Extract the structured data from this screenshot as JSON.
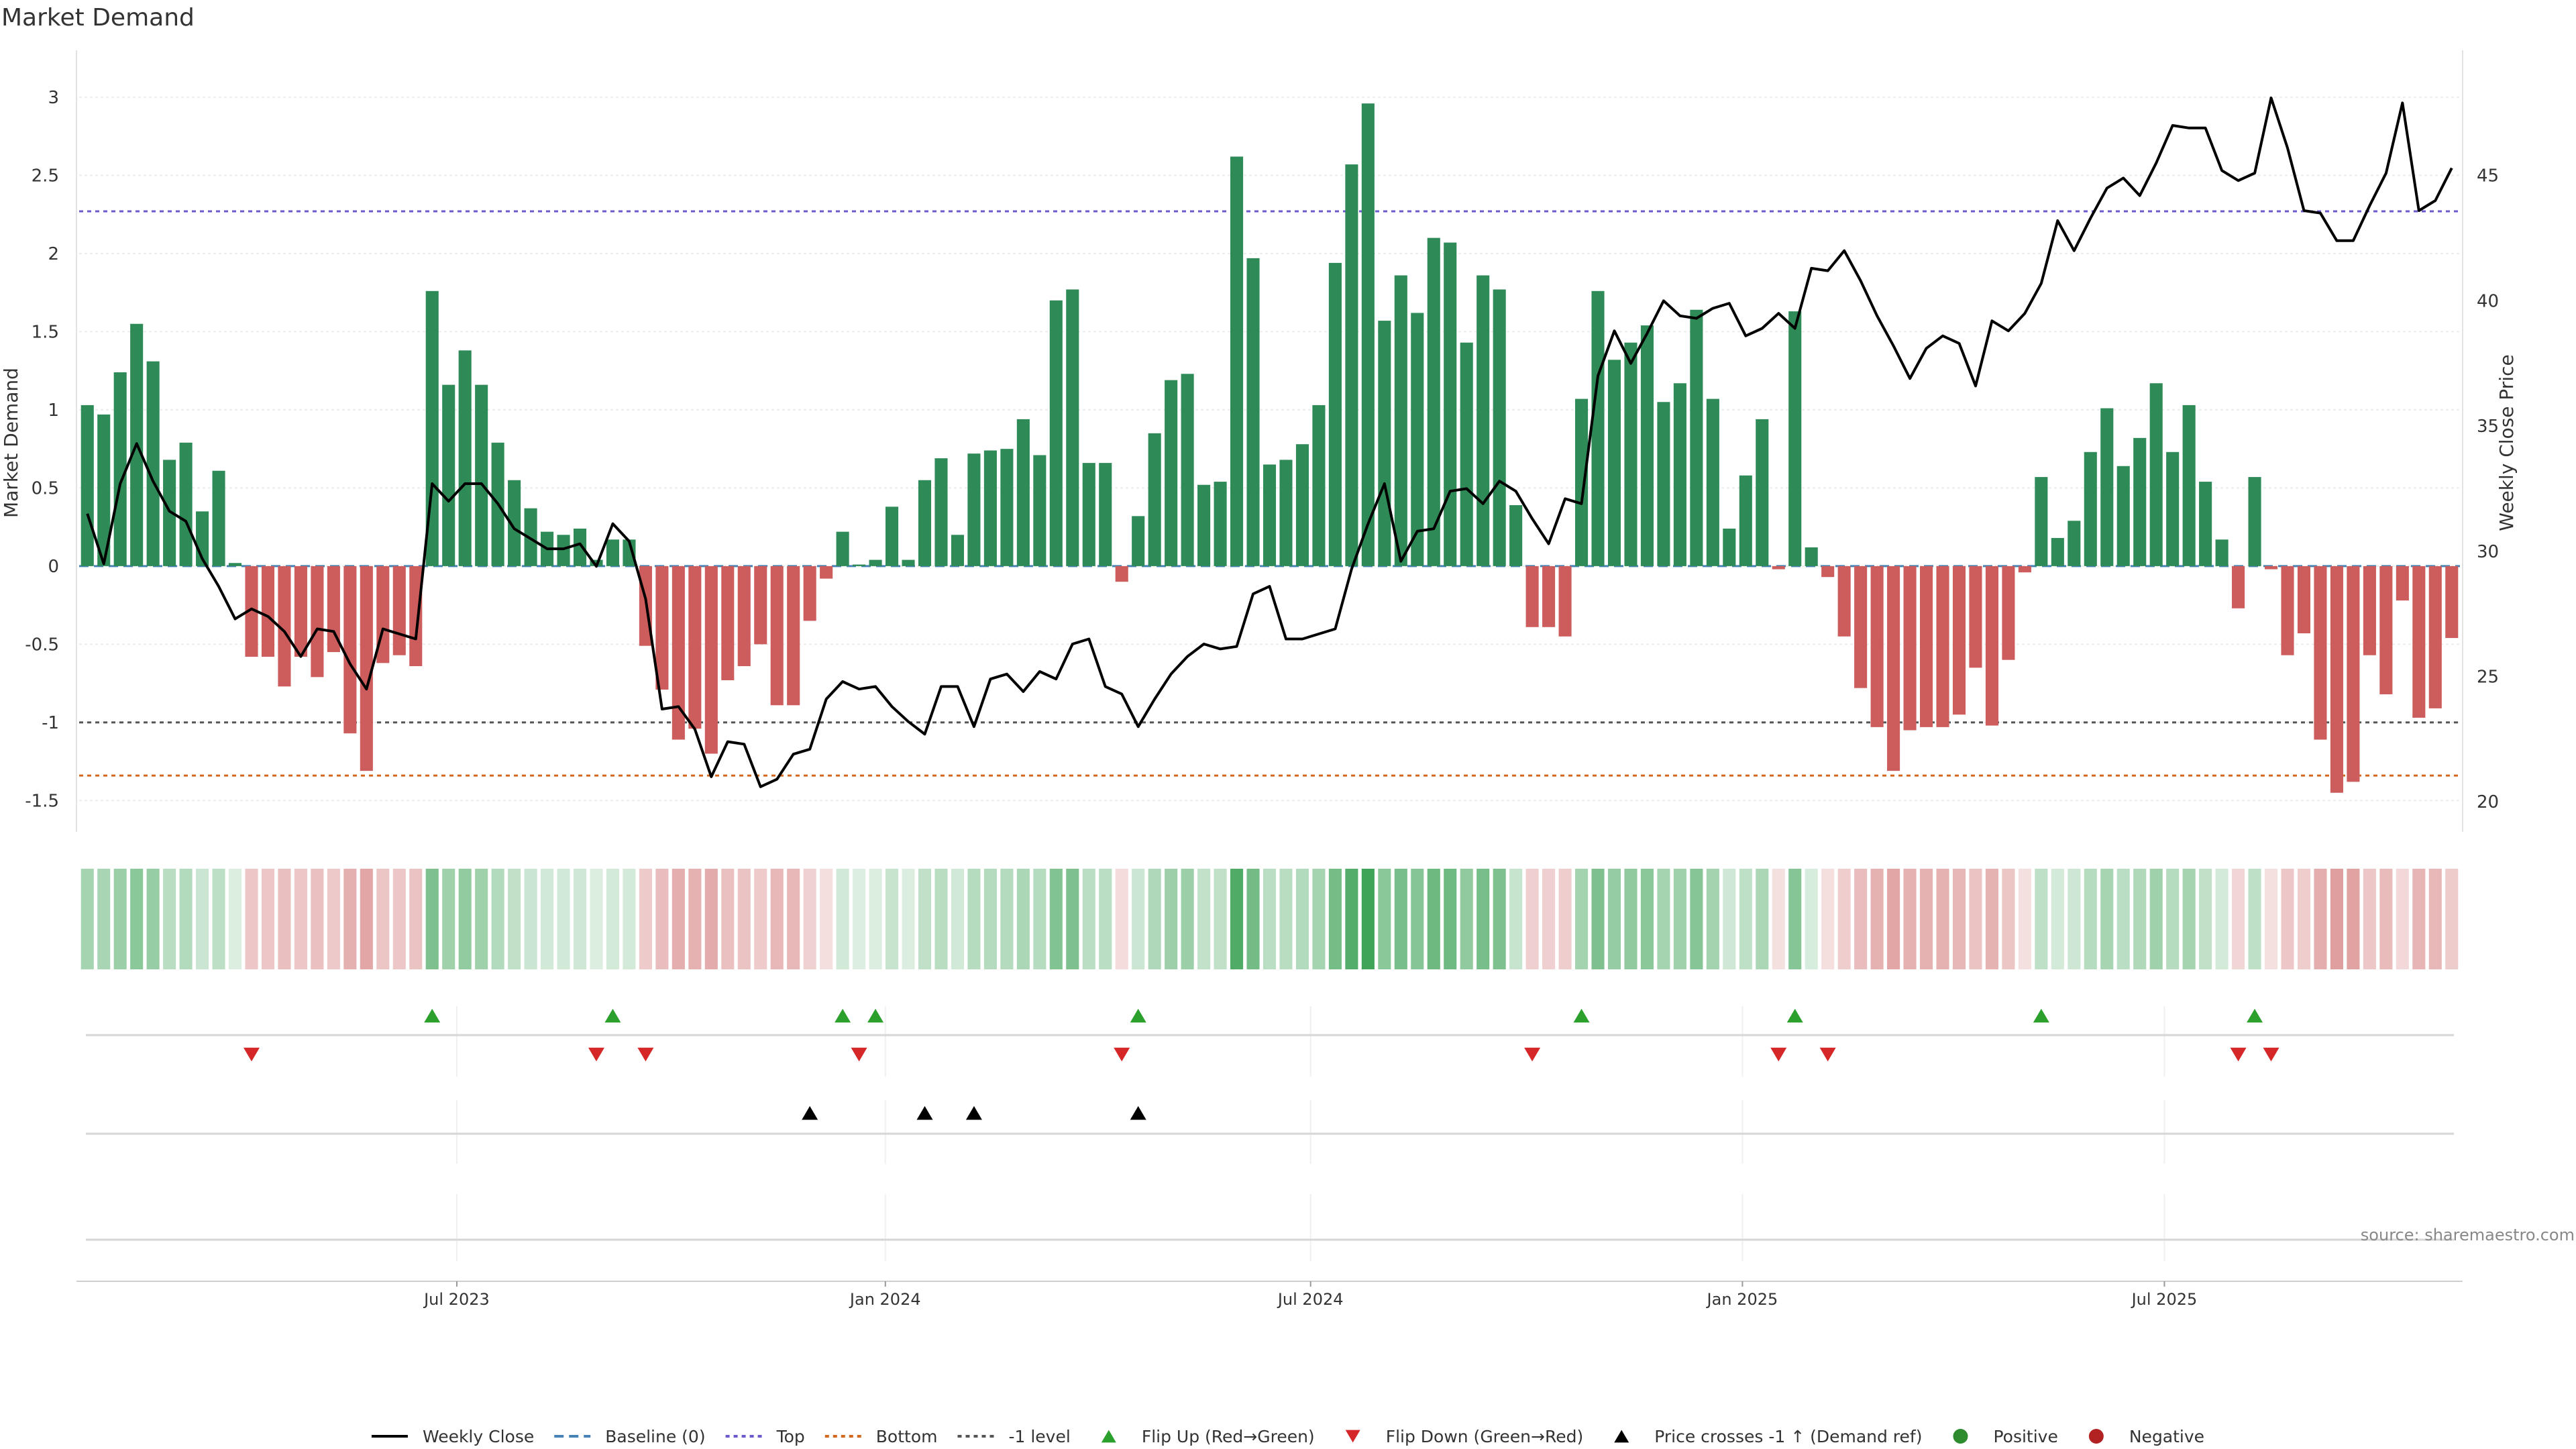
{
  "title": "Market Demand",
  "source_note": "source: sharemaestro.com",
  "colors": {
    "positive": "#2e8b57",
    "negative": "#cd5c5c",
    "price": "#000000",
    "baseline": "#4682b4",
    "top": "#6a5acd",
    "bottom": "#d2691e",
    "minus_one": "#555555",
    "flip_up": "#2ca02c",
    "flip_down": "#d62728",
    "cross": "#000000",
    "positive_dot": "#2e8b2e",
    "negative_dot": "#b22222"
  },
  "chart_data": {
    "type": "bar",
    "title": "Market Demand",
    "ylabel": "Market Demand",
    "y2label": "Weekly Close Price",
    "ylim": [
      -1.7,
      3.3
    ],
    "y2lim": [
      18.8,
      50.0
    ],
    "yticks": [
      -1.5,
      -1,
      -0.5,
      0,
      0.5,
      1,
      1.5,
      2,
      2.5,
      3
    ],
    "y2ticks": [
      20,
      25,
      30,
      35,
      40,
      45
    ],
    "reference_lines": {
      "baseline": 0,
      "top": 2.27,
      "bottom": -1.34,
      "minus_one": -1.0
    },
    "x_ticks": [
      {
        "label": "Jul 2023",
        "index": 22.5
      },
      {
        "label": "Jan 2024",
        "index": 48.6
      },
      {
        "label": "Jul 2024",
        "index": 74.5
      },
      {
        "label": "Jan 2025",
        "index": 100.8
      },
      {
        "label": "Jul 2025",
        "index": 126.5
      }
    ],
    "demand": [
      1.03,
      0.97,
      1.24,
      1.55,
      1.31,
      0.68,
      0.79,
      0.35,
      0.61,
      0.02,
      -0.58,
      -0.58,
      -0.77,
      -0.58,
      -0.71,
      -0.55,
      -1.07,
      -1.31,
      -0.62,
      -0.57,
      -0.64,
      1.76,
      1.16,
      1.38,
      1.16,
      0.79,
      0.55,
      0.37,
      0.22,
      0.2,
      0.24,
      0.04,
      0.17,
      0.17,
      -0.51,
      -0.79,
      -1.11,
      -1.04,
      -1.2,
      -0.73,
      -0.64,
      -0.5,
      -0.89,
      -0.89,
      -0.35,
      -0.08,
      0.22,
      0.01,
      0.04,
      0.38,
      0.04,
      0.55,
      0.69,
      0.2,
      0.72,
      0.74,
      0.75,
      0.94,
      0.71,
      1.7,
      1.77,
      0.66,
      0.66,
      -0.1,
      0.32,
      0.85,
      1.19,
      1.23,
      0.52,
      0.54,
      2.62,
      1.97,
      0.65,
      0.68,
      0.78,
      1.03,
      1.94,
      2.57,
      2.96,
      1.57,
      1.86,
      1.62,
      2.1,
      2.07,
      1.43,
      1.86,
      1.77,
      0.39,
      -0.39,
      -0.39,
      -0.45,
      1.07,
      1.76,
      1.32,
      1.43,
      1.54,
      1.05,
      1.17,
      1.64,
      1.07,
      0.24,
      0.58,
      0.94,
      -0.02,
      1.63,
      0.12,
      -0.07,
      -0.45,
      -0.78,
      -1.03,
      -1.31,
      -1.05,
      -1.03,
      -1.03,
      -0.95,
      -0.65,
      -1.02,
      -0.6,
      -0.04,
      0.57,
      0.18,
      0.29,
      0.73,
      1.01,
      0.64,
      0.82,
      1.17,
      0.73,
      1.03,
      0.54,
      0.17,
      -0.27,
      0.57,
      -0.02,
      -0.57,
      -0.43,
      -1.11,
      -1.45,
      -1.38,
      -0.57,
      -0.82,
      -0.22,
      -0.97,
      -0.91,
      -0.46
    ],
    "price": [
      31.5,
      29.5,
      32.7,
      34.3,
      32.8,
      31.6,
      31.2,
      29.7,
      28.6,
      27.3,
      27.7,
      27.4,
      26.8,
      25.8,
      26.9,
      26.8,
      25.5,
      24.5,
      26.9,
      26.7,
      26.5,
      32.7,
      32.0,
      32.7,
      32.7,
      31.9,
      30.9,
      30.5,
      30.1,
      30.1,
      30.3,
      29.4,
      31.1,
      30.4,
      28.1,
      23.7,
      23.8,
      22.9,
      21.0,
      22.4,
      22.3,
      20.6,
      20.9,
      21.9,
      22.1,
      24.1,
      24.8,
      24.5,
      24.6,
      23.8,
      23.2,
      22.7,
      24.6,
      24.6,
      23.0,
      24.9,
      25.1,
      24.4,
      25.2,
      24.9,
      26.3,
      26.5,
      24.6,
      24.3,
      23.0,
      24.1,
      25.1,
      25.8,
      26.3,
      26.1,
      26.2,
      28.3,
      28.6,
      26.5,
      26.5,
      26.7,
      26.9,
      29.3,
      31.1,
      32.7,
      29.6,
      30.8,
      30.9,
      32.4,
      32.5,
      31.9,
      32.8,
      32.4,
      31.3,
      30.3,
      32.1,
      31.9,
      37.0,
      38.8,
      37.5,
      38.7,
      40.0,
      39.4,
      39.3,
      39.7,
      39.9,
      38.6,
      38.9,
      39.5,
      38.9,
      41.3,
      41.2,
      42.0,
      40.8,
      39.4,
      38.2,
      36.9,
      38.1,
      38.6,
      38.3,
      36.6,
      39.2,
      38.8,
      39.5,
      40.7,
      43.2,
      42.0,
      43.3,
      44.5,
      44.9,
      44.2,
      45.5,
      47.0,
      46.9,
      46.9,
      45.2,
      44.8,
      45.1,
      48.1,
      46.1,
      43.6,
      43.5,
      42.4,
      42.4,
      43.8,
      45.1,
      47.9,
      43.6,
      44.0,
      45.3
    ],
    "flip_up": [
      21,
      32,
      46,
      48,
      64,
      91,
      104,
      119,
      132
    ],
    "flip_down": [
      10,
      31,
      34,
      47,
      63,
      88,
      103,
      106,
      131,
      133
    ],
    "price_crosses": [
      44,
      51,
      54,
      64
    ]
  },
  "legend": [
    {
      "key": "weekly_close",
      "label": "Weekly Close",
      "symbol": "line"
    },
    {
      "key": "baseline",
      "label": "Baseline (0)",
      "symbol": "dash"
    },
    {
      "key": "top",
      "label": "Top",
      "symbol": "dot"
    },
    {
      "key": "bottom",
      "label": "Bottom",
      "symbol": "dot"
    },
    {
      "key": "minus_one",
      "label": "-1 level",
      "symbol": "dot"
    },
    {
      "key": "flip_up",
      "label": "Flip Up (Red→Green)",
      "symbol": "tri-up"
    },
    {
      "key": "flip_down",
      "label": "Flip Down (Green→Red)",
      "symbol": "tri-down"
    },
    {
      "key": "cross",
      "label": "Price crosses -1 ↑ (Demand ref)",
      "symbol": "tri-up-black"
    },
    {
      "key": "positive",
      "label": "Positive",
      "symbol": "dot-green"
    },
    {
      "key": "negative",
      "label": "Negative",
      "symbol": "dot-red"
    }
  ]
}
